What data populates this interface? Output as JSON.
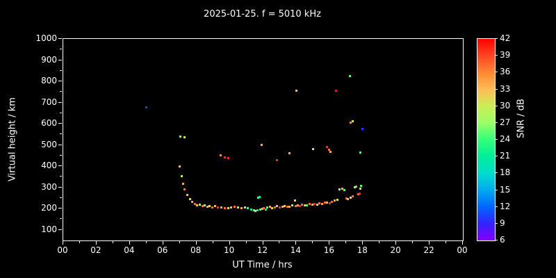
{
  "title": "2025-01-25. f = 5010 kHz",
  "chart_data": {
    "type": "scatter",
    "title": "2025-01-25. f = 5010 kHz",
    "xlabel": "UT Time / hrs",
    "ylabel": "Virtual height / km",
    "xlim": [
      0,
      24
    ],
    "ylim": [
      50,
      1000
    ],
    "x_ticks": [
      0,
      2,
      4,
      6,
      8,
      10,
      12,
      14,
      16,
      18,
      20,
      22,
      24
    ],
    "x_tick_labels": [
      "00",
      "02",
      "04",
      "06",
      "08",
      "10",
      "12",
      "14",
      "16",
      "18",
      "20",
      "22",
      "00"
    ],
    "y_ticks": [
      100,
      200,
      300,
      400,
      500,
      600,
      700,
      800,
      900,
      1000
    ],
    "background": "#000000",
    "axis_color": "#ffffff",
    "grid": false,
    "marker": "square",
    "colorbar": {
      "label": "SNR / dB",
      "min": 6,
      "max": 42,
      "ticks": [
        6,
        9,
        12,
        15,
        18,
        21,
        24,
        27,
        30,
        33,
        36,
        39,
        42
      ],
      "stops": [
        {
          "value": 6,
          "color": "#8800ff"
        },
        {
          "value": 9,
          "color": "#3322ff"
        },
        {
          "value": 12,
          "color": "#0066ff"
        },
        {
          "value": 15,
          "color": "#00aaee"
        },
        {
          "value": 18,
          "color": "#00ddcc"
        },
        {
          "value": 21,
          "color": "#00ee99"
        },
        {
          "value": 24,
          "color": "#33ff77"
        },
        {
          "value": 27,
          "color": "#99ff66"
        },
        {
          "value": 30,
          "color": "#ccee55"
        },
        {
          "value": 33,
          "color": "#ffbb55"
        },
        {
          "value": 36,
          "color": "#ff8833"
        },
        {
          "value": 39,
          "color": "#ff4422"
        },
        {
          "value": 42,
          "color": "#ff0000"
        }
      ]
    },
    "points_format": [
      "ut_time_hrs",
      "virtual_height_km",
      "snr_db"
    ],
    "points": [
      [
        5.0,
        678,
        10
      ],
      [
        7.05,
        540,
        26
      ],
      [
        7.3,
        538,
        29
      ],
      [
        9.45,
        452,
        36
      ],
      [
        9.7,
        442,
        40
      ],
      [
        9.9,
        438,
        40
      ],
      [
        11.9,
        500,
        34
      ],
      [
        12.85,
        428,
        40
      ],
      [
        13.6,
        462,
        34
      ],
      [
        14.0,
        755,
        33
      ],
      [
        15.0,
        482,
        27
      ],
      [
        15.85,
        490,
        40
      ],
      [
        15.95,
        478,
        37
      ],
      [
        16.05,
        468,
        34
      ],
      [
        16.4,
        755,
        41
      ],
      [
        17.2,
        825,
        25
      ],
      [
        17.25,
        605,
        36
      ],
      [
        17.4,
        612,
        31
      ],
      [
        17.85,
        465,
        25
      ],
      [
        17.95,
        576,
        10
      ],
      [
        7.0,
        398,
        33
      ],
      [
        7.1,
        352,
        31
      ],
      [
        7.2,
        318,
        34
      ],
      [
        7.3,
        290,
        37
      ],
      [
        7.45,
        264,
        33
      ],
      [
        7.6,
        244,
        31
      ],
      [
        7.75,
        231,
        34
      ],
      [
        7.9,
        221,
        37
      ],
      [
        8.05,
        214,
        33
      ],
      [
        8.2,
        218,
        30
      ],
      [
        8.35,
        211,
        37
      ],
      [
        8.5,
        215,
        27
      ],
      [
        8.65,
        209,
        34
      ],
      [
        8.8,
        213,
        31
      ],
      [
        8.95,
        207,
        37
      ],
      [
        9.1,
        211,
        33
      ],
      [
        9.3,
        207,
        40
      ],
      [
        9.5,
        205,
        34
      ],
      [
        9.7,
        203,
        37
      ],
      [
        9.9,
        201,
        30
      ],
      [
        10.1,
        205,
        33
      ],
      [
        10.3,
        209,
        37
      ],
      [
        10.5,
        204,
        27
      ],
      [
        10.7,
        201,
        34
      ],
      [
        10.9,
        206,
        31
      ],
      [
        11.1,
        203,
        24
      ],
      [
        11.3,
        197,
        21
      ],
      [
        11.45,
        192,
        25
      ],
      [
        11.55,
        189,
        28
      ],
      [
        11.65,
        194,
        21
      ],
      [
        11.7,
        250,
        24
      ],
      [
        11.8,
        255,
        22
      ],
      [
        11.85,
        195,
        25
      ],
      [
        11.95,
        199,
        33
      ],
      [
        12.05,
        202,
        37
      ],
      [
        12.15,
        197,
        21
      ],
      [
        12.25,
        205,
        25
      ],
      [
        12.4,
        209,
        34
      ],
      [
        12.55,
        203,
        31
      ],
      [
        12.7,
        207,
        37
      ],
      [
        12.85,
        211,
        33
      ],
      [
        13.0,
        205,
        40
      ],
      [
        13.15,
        209,
        34
      ],
      [
        13.3,
        213,
        31
      ],
      [
        13.45,
        210,
        37
      ],
      [
        13.6,
        208,
        34
      ],
      [
        13.75,
        214,
        27
      ],
      [
        13.9,
        238,
        31
      ],
      [
        13.95,
        212,
        37
      ],
      [
        14.1,
        215,
        34
      ],
      [
        14.2,
        211,
        40
      ],
      [
        14.35,
        219,
        37
      ],
      [
        14.5,
        216,
        33
      ],
      [
        14.65,
        214,
        25
      ],
      [
        14.8,
        221,
        37
      ],
      [
        14.95,
        218,
        34
      ],
      [
        15.1,
        222,
        40
      ],
      [
        15.25,
        219,
        31
      ],
      [
        15.4,
        225,
        37
      ],
      [
        15.55,
        223,
        34
      ],
      [
        15.7,
        227,
        37
      ],
      [
        15.85,
        230,
        33
      ],
      [
        16.0,
        226,
        40
      ],
      [
        16.15,
        232,
        37
      ],
      [
        16.3,
        237,
        34
      ],
      [
        16.45,
        241,
        30
      ],
      [
        16.6,
        290,
        27
      ],
      [
        16.75,
        293,
        34
      ],
      [
        16.9,
        287,
        25
      ],
      [
        17.0,
        249,
        37
      ],
      [
        17.1,
        245,
        33
      ],
      [
        17.25,
        251,
        31
      ],
      [
        17.4,
        257,
        37
      ],
      [
        17.5,
        299,
        27
      ],
      [
        17.6,
        304,
        34
      ],
      [
        17.7,
        267,
        37
      ],
      [
        17.8,
        271,
        40
      ],
      [
        17.85,
        294,
        31
      ],
      [
        17.9,
        308,
        25
      ]
    ]
  }
}
